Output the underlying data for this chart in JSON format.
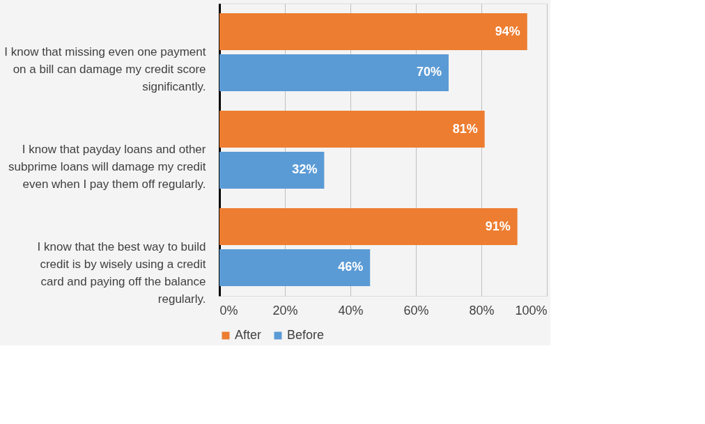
{
  "chart_data": {
    "type": "bar",
    "orientation": "horizontal",
    "categories": [
      "I know that missing even one payment on a bill can damage my credit score significantly.",
      "I know that payday loans and other subprime loans will damage my credit even when I pay them off regularly.",
      "I know that the best way to build credit is by wisely using a credit card and paying off the balance regularly."
    ],
    "series": [
      {
        "name": "After",
        "color": "#ed7d31",
        "values": [
          94,
          81,
          91
        ],
        "value_labels": [
          "94%",
          "81%",
          "91%"
        ]
      },
      {
        "name": "Before",
        "color": "#5b9bd5",
        "values": [
          70,
          32,
          46
        ],
        "value_labels": [
          "70%",
          "32%",
          "46%"
        ]
      }
    ],
    "xlim": [
      0,
      100
    ],
    "xticks": [
      {
        "value": 0,
        "label": "0%"
      },
      {
        "value": 20,
        "label": "20%"
      },
      {
        "value": 40,
        "label": "40%"
      },
      {
        "value": 60,
        "label": "60%"
      },
      {
        "value": 80,
        "label": "80%"
      },
      {
        "value": 100,
        "label": "100%"
      }
    ],
    "grid": "x",
    "legend": "bottom"
  }
}
